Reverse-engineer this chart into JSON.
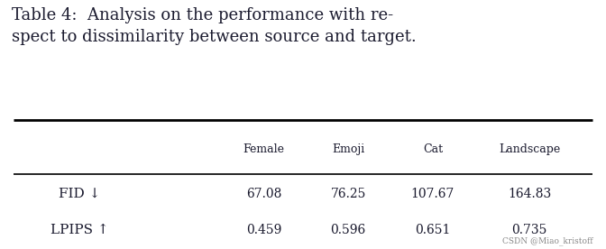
{
  "title_line1": "Table 4:  Analysis on the performance with re-",
  "title_line2": "spect to dissimilarity between source and target.",
  "col_headers": [
    "Female",
    "Emoji",
    "Cat",
    "Landscape"
  ],
  "row_headers": [
    "FID ↓",
    "LPIPS ↑"
  ],
  "values": [
    [
      "67.08",
      "76.25",
      "107.67",
      "164.83"
    ],
    [
      "0.459",
      "0.596",
      "0.651",
      "0.735"
    ]
  ],
  "bg_color": "#ffffff",
  "text_color": "#1a1a2e",
  "header_fontsize": 9,
  "row_fontsize": 10,
  "title_fontsize": 13,
  "watermark": "CSDN @Miao_kristoff"
}
